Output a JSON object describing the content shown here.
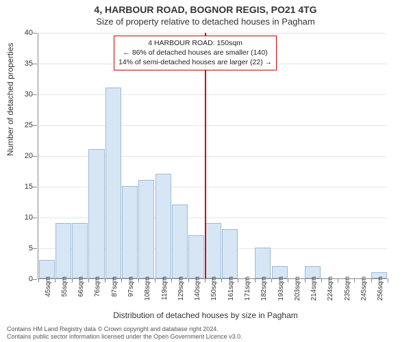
{
  "chart": {
    "type": "histogram",
    "title_main": "4, HARBOUR ROAD, BOGNOR REGIS, PO21 4TG",
    "title_sub": "Size of property relative to detached houses in Pagham",
    "x_axis_label": "Distribution of detached houses by size in Pagham",
    "y_axis_label": "Number of detached properties",
    "y_lim": [
      0,
      40
    ],
    "y_ticks": [
      0,
      5,
      10,
      15,
      20,
      25,
      30,
      35,
      40
    ],
    "x_tick_labels": [
      "45sqm",
      "55sqm",
      "66sqm",
      "76sqm",
      "87sqm",
      "97sqm",
      "108sqm",
      "119sqm",
      "129sqm",
      "140sqm",
      "150sqm",
      "161sqm",
      "171sqm",
      "182sqm",
      "193sqm",
      "203sqm",
      "214sqm",
      "224sqm",
      "235sqm",
      "245sqm",
      "256sqm"
    ],
    "bar_values": [
      3,
      9,
      9,
      21,
      31,
      15,
      16,
      17,
      12,
      7,
      9,
      8,
      0,
      5,
      2,
      0,
      2,
      0,
      0,
      0,
      1
    ],
    "bar_fill": "#d7e6f5",
    "bar_border": "#9fb9d6",
    "background_color": "#ffffff",
    "grid_color": "#e6e6e6",
    "axis_color": "#888888",
    "reference_line": {
      "category_index": 10,
      "color": "#cc0000"
    },
    "annotation": {
      "line1": "4 HARBOUR ROAD: 150sqm",
      "line2": "← 86% of detached houses are smaller (140)",
      "line3": "14% of semi-detached houses are larger (22) →",
      "border_color": "#cc0000"
    },
    "title_fontsize": 14,
    "subtitle_fontsize": 13,
    "label_fontsize": 12,
    "tick_fontsize": 11
  },
  "footer": {
    "line1": "Contains HM Land Registry data © Crown copyright and database right 2024.",
    "line2": "Contains public sector information licensed under the Open Government Licence v3.0."
  }
}
